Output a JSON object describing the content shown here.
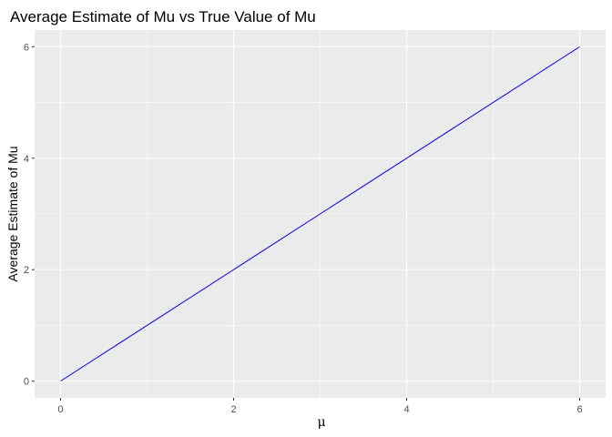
{
  "chart_data": {
    "type": "line",
    "title": "Average Estimate of Mu vs True Value of Mu",
    "xlabel": "μ",
    "ylabel": "Average Estimate of Mu",
    "xlim": [
      -0.3,
      6.3
    ],
    "ylim": [
      -0.3,
      6.3
    ],
    "x_ticks": [
      0,
      2,
      4,
      6
    ],
    "y_ticks": [
      0,
      2,
      4,
      6
    ],
    "x_tick_labels": [
      "0",
      "2",
      "4",
      "6"
    ],
    "y_tick_labels": [
      "0",
      "2",
      "4",
      "6"
    ],
    "grid": true,
    "legend": "none",
    "series": [
      {
        "x": [
          0,
          1,
          2,
          3,
          4,
          5,
          6
        ],
        "values": [
          0.0,
          1.0,
          2.0,
          3.0,
          4.0,
          5.0,
          6.0
        ],
        "color": "#0000ff"
      }
    ],
    "colors": {
      "panel_background": "#ebebeb",
      "grid_major": "#ffffff",
      "line": "#0000ff"
    }
  }
}
